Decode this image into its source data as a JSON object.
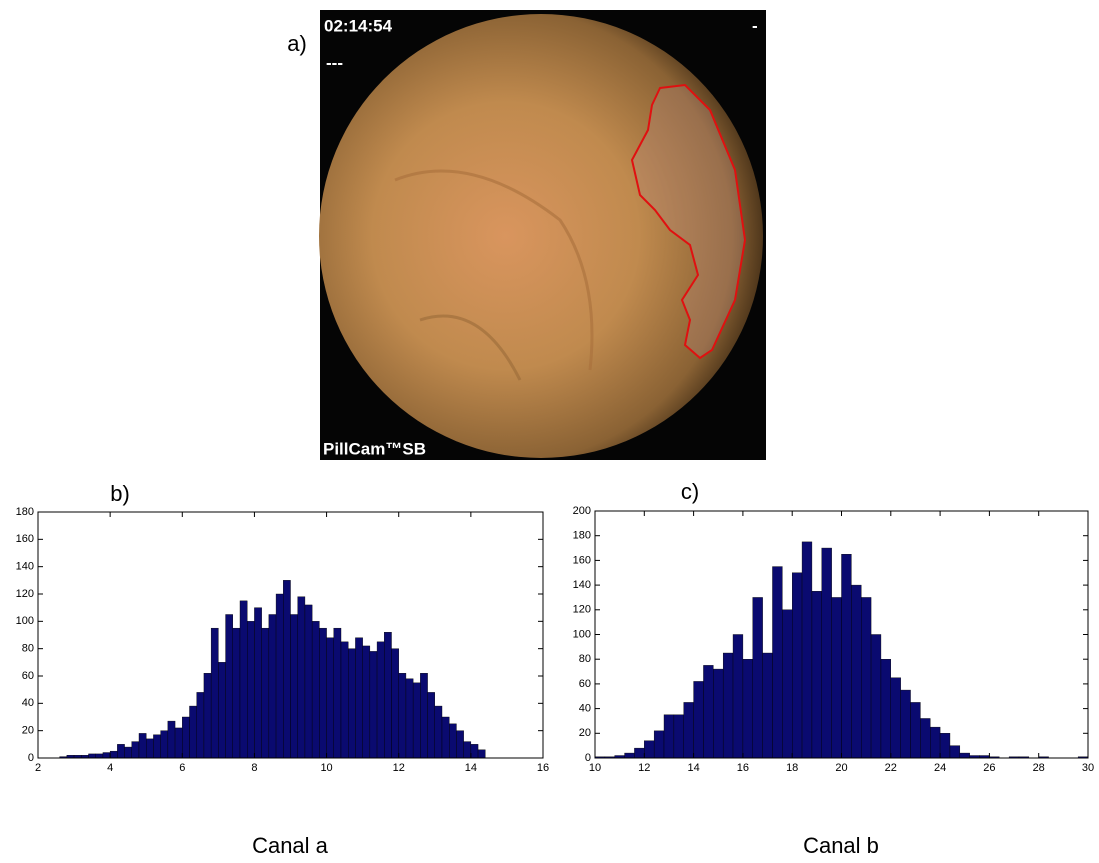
{
  "image": {
    "label": "a)",
    "timestamp": "02:14:54",
    "subtitle": "---",
    "corner": "-",
    "brand": "PillCam™SB"
  },
  "chart_data": [
    {
      "type": "histogram",
      "label": "b)",
      "xlabel": "Canal a",
      "color": "#0a0a70",
      "bins": [
        2.6,
        2.8,
        3.0,
        3.2,
        3.4,
        3.6,
        3.8,
        4.0,
        4.2,
        4.4,
        4.6,
        4.8,
        5.0,
        5.2,
        5.4,
        5.6,
        5.8,
        6.0,
        6.2,
        6.4,
        6.6,
        6.8,
        7.0,
        7.2,
        7.4,
        7.6,
        7.8,
        8.0,
        8.2,
        8.4,
        8.6,
        8.8,
        9.0,
        9.2,
        9.4,
        9.6,
        9.8,
        10.0,
        10.2,
        10.4,
        10.6,
        10.8,
        11.0,
        11.2,
        11.4,
        11.6,
        11.8,
        12.0,
        12.2,
        12.4,
        12.6,
        12.8,
        13.0,
        13.2,
        13.4,
        13.6,
        13.8,
        14.0,
        14.2,
        14.4
      ],
      "values": [
        1,
        2,
        2,
        2,
        3,
        3,
        4,
        5,
        10,
        8,
        12,
        18,
        14,
        17,
        20,
        27,
        22,
        30,
        38,
        48,
        62,
        95,
        70,
        105,
        95,
        115,
        100,
        110,
        95,
        105,
        120,
        130,
        105,
        118,
        112,
        100,
        95,
        88,
        95,
        85,
        80,
        88,
        82,
        78,
        85,
        92,
        80,
        62,
        58,
        55,
        62,
        48,
        38,
        30,
        25,
        20,
        12,
        10,
        6
      ],
      "xlim": [
        2,
        16
      ],
      "xticks": [
        2,
        4,
        6,
        8,
        10,
        12,
        14,
        16
      ],
      "ylim": [
        0,
        180
      ],
      "yticks": [
        0,
        20,
        40,
        60,
        80,
        100,
        120,
        140,
        160,
        180
      ]
    },
    {
      "type": "histogram",
      "label": "c)",
      "xlabel": "Canal b",
      "color": "#0a0a70",
      "bins": [
        10.0,
        10.4,
        10.8,
        11.2,
        11.6,
        12.0,
        12.4,
        12.8,
        13.2,
        13.6,
        14.0,
        14.4,
        14.8,
        15.2,
        15.6,
        16.0,
        16.4,
        16.8,
        17.2,
        17.6,
        18.0,
        18.4,
        18.8,
        19.2,
        19.6,
        20.0,
        20.4,
        20.8,
        21.2,
        21.6,
        22.0,
        22.4,
        22.8,
        23.2,
        23.6,
        24.0,
        24.4,
        24.8,
        25.2,
        25.6,
        26.0,
        26.4,
        26.8,
        27.2,
        27.6,
        28.0,
        28.4,
        28.8,
        29.2,
        29.6,
        30.0
      ],
      "values": [
        1,
        1,
        2,
        4,
        8,
        14,
        22,
        35,
        35,
        45,
        62,
        75,
        72,
        85,
        100,
        80,
        130,
        85,
        155,
        120,
        150,
        175,
        135,
        170,
        130,
        165,
        140,
        130,
        100,
        80,
        65,
        55,
        45,
        32,
        25,
        20,
        10,
        4,
        2,
        2,
        1,
        0,
        1,
        1,
        0,
        1,
        0,
        0,
        0,
        1
      ],
      "xlim": [
        10,
        30
      ],
      "xticks": [
        10,
        12,
        14,
        16,
        18,
        20,
        22,
        24,
        26,
        28,
        30
      ],
      "ylim": [
        0,
        200
      ],
      "yticks": [
        0,
        20,
        40,
        60,
        80,
        100,
        120,
        140,
        160,
        180,
        200
      ]
    }
  ]
}
